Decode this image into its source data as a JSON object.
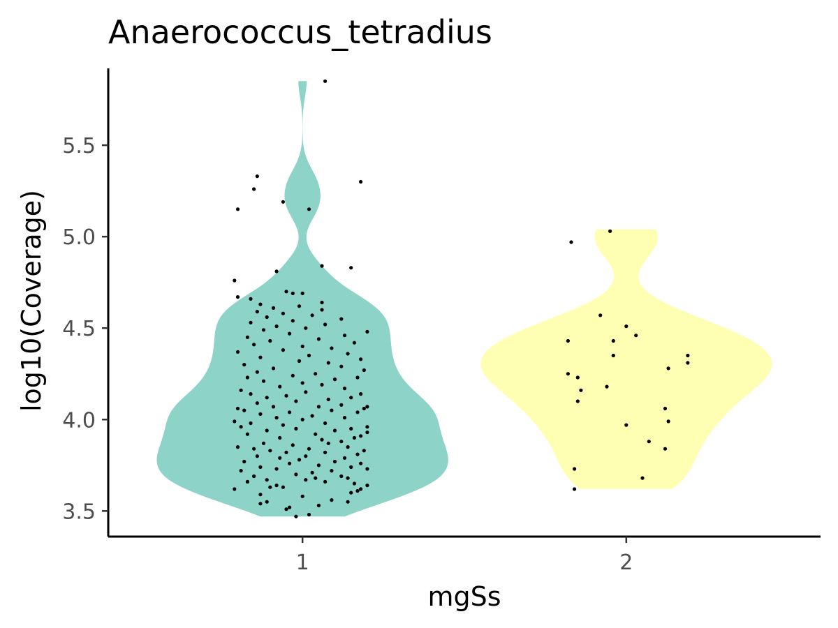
{
  "chart_data": {
    "type": "violin",
    "title": "Anaerococcus_tetradius",
    "xlabel": "mgSs",
    "ylabel": "log10(Coverage)",
    "categories": [
      "1",
      "2"
    ],
    "ylim": [
      3.36,
      5.92
    ],
    "yticks": [
      "3.5",
      "4.0",
      "4.5",
      "5.0",
      "5.5"
    ],
    "grid": false,
    "legend": "none",
    "colors": {
      "1": "#8dd3c7",
      "2": "#ffffb3",
      "points": "#000000",
      "axis": "#000000"
    },
    "series": [
      {
        "category": "1",
        "range": [
          3.47,
          5.85
        ],
        "points": [
          {
            "x": 0.98,
            "y": 3.47
          },
          {
            "x": 1.02,
            "y": 3.48
          },
          {
            "x": 0.95,
            "y": 3.51
          },
          {
            "x": 0.96,
            "y": 3.52
          },
          {
            "x": 1.05,
            "y": 3.53
          },
          {
            "x": 0.87,
            "y": 3.54
          },
          {
            "x": 0.89,
            "y": 3.55
          },
          {
            "x": 1.14,
            "y": 3.55
          },
          {
            "x": 1.09,
            "y": 3.56
          },
          {
            "x": 1.0,
            "y": 3.58
          },
          {
            "x": 0.87,
            "y": 3.59
          },
          {
            "x": 1.15,
            "y": 3.6
          },
          {
            "x": 1.17,
            "y": 3.61
          },
          {
            "x": 1.18,
            "y": 3.62
          },
          {
            "x": 0.79,
            "y": 3.62
          },
          {
            "x": 0.9,
            "y": 3.63
          },
          {
            "x": 0.94,
            "y": 3.63
          },
          {
            "x": 1.2,
            "y": 3.64
          },
          {
            "x": 0.92,
            "y": 3.64
          },
          {
            "x": 1.16,
            "y": 3.65
          },
          {
            "x": 0.83,
            "y": 3.66
          },
          {
            "x": 1.07,
            "y": 3.66
          },
          {
            "x": 1.01,
            "y": 3.67
          },
          {
            "x": 0.89,
            "y": 3.67
          },
          {
            "x": 1.04,
            "y": 3.68
          },
          {
            "x": 1.14,
            "y": 3.68
          },
          {
            "x": 1.12,
            "y": 3.69
          },
          {
            "x": 0.85,
            "y": 3.69
          },
          {
            "x": 0.98,
            "y": 3.7
          },
          {
            "x": 1.03,
            "y": 3.71
          },
          {
            "x": 1.09,
            "y": 3.72
          },
          {
            "x": 0.81,
            "y": 3.72
          },
          {
            "x": 1.2,
            "y": 3.73
          },
          {
            "x": 0.92,
            "y": 3.73
          },
          {
            "x": 1.15,
            "y": 3.74
          },
          {
            "x": 0.87,
            "y": 3.74
          },
          {
            "x": 1.05,
            "y": 3.75
          },
          {
            "x": 0.96,
            "y": 3.76
          },
          {
            "x": 1.18,
            "y": 3.76
          },
          {
            "x": 0.82,
            "y": 3.77
          },
          {
            "x": 1.1,
            "y": 3.77
          },
          {
            "x": 0.99,
            "y": 3.78
          },
          {
            "x": 0.93,
            "y": 3.79
          },
          {
            "x": 1.13,
            "y": 3.79
          },
          {
            "x": 1.01,
            "y": 3.8
          },
          {
            "x": 0.86,
            "y": 3.8
          },
          {
            "x": 1.17,
            "y": 3.81
          },
          {
            "x": 1.07,
            "y": 3.82
          },
          {
            "x": 0.95,
            "y": 3.82
          },
          {
            "x": 0.9,
            "y": 3.83
          },
          {
            "x": 1.19,
            "y": 3.83
          },
          {
            "x": 0.85,
            "y": 3.84
          },
          {
            "x": 1.02,
            "y": 3.84
          },
          {
            "x": 0.8,
            "y": 3.85
          },
          {
            "x": 1.14,
            "y": 3.85
          },
          {
            "x": 0.97,
            "y": 3.86
          },
          {
            "x": 1.08,
            "y": 3.87
          },
          {
            "x": 0.88,
            "y": 3.87
          },
          {
            "x": 1.12,
            "y": 3.88
          },
          {
            "x": 1.06,
            "y": 3.89
          },
          {
            "x": 0.93,
            "y": 3.9
          },
          {
            "x": 1.16,
            "y": 3.9
          },
          {
            "x": 1.18,
            "y": 3.91
          },
          {
            "x": 0.83,
            "y": 3.92
          },
          {
            "x": 1.04,
            "y": 3.92
          },
          {
            "x": 1.2,
            "y": 3.93
          },
          {
            "x": 0.89,
            "y": 3.94
          },
          {
            "x": 1.1,
            "y": 3.94
          },
          {
            "x": 0.98,
            "y": 3.95
          },
          {
            "x": 1.15,
            "y": 3.95
          },
          {
            "x": 0.81,
            "y": 3.96
          },
          {
            "x": 1.2,
            "y": 3.96
          },
          {
            "x": 0.94,
            "y": 3.97
          },
          {
            "x": 0.84,
            "y": 3.98
          },
          {
            "x": 1.07,
            "y": 3.98
          },
          {
            "x": 0.79,
            "y": 3.99
          },
          {
            "x": 1.0,
            "y": 4.0
          },
          {
            "x": 1.13,
            "y": 4.01
          },
          {
            "x": 0.92,
            "y": 4.01
          },
          {
            "x": 1.03,
            "y": 4.02
          },
          {
            "x": 0.87,
            "y": 4.03
          },
          {
            "x": 1.17,
            "y": 4.04
          },
          {
            "x": 0.96,
            "y": 4.04
          },
          {
            "x": 1.09,
            "y": 4.05
          },
          {
            "x": 0.82,
            "y": 4.05
          },
          {
            "x": 1.19,
            "y": 4.06
          },
          {
            "x": 0.8,
            "y": 4.06
          },
          {
            "x": 1.05,
            "y": 4.07
          },
          {
            "x": 0.91,
            "y": 4.07
          },
          {
            "x": 1.2,
            "y": 4.07
          },
          {
            "x": 1.12,
            "y": 4.08
          },
          {
            "x": 0.86,
            "y": 4.09
          },
          {
            "x": 0.98,
            "y": 4.1
          },
          {
            "x": 1.08,
            "y": 4.11
          },
          {
            "x": 0.89,
            "y": 4.12
          },
          {
            "x": 1.15,
            "y": 4.12
          },
          {
            "x": 0.95,
            "y": 4.13
          },
          {
            "x": 0.84,
            "y": 4.14
          },
          {
            "x": 1.18,
            "y": 4.14
          },
          {
            "x": 1.01,
            "y": 4.15
          },
          {
            "x": 0.81,
            "y": 4.16
          },
          {
            "x": 1.13,
            "y": 4.17
          },
          {
            "x": 0.93,
            "y": 4.18
          },
          {
            "x": 1.06,
            "y": 4.19
          },
          {
            "x": 1.0,
            "y": 4.2
          },
          {
            "x": 0.88,
            "y": 4.21
          },
          {
            "x": 1.1,
            "y": 4.22
          },
          {
            "x": 0.83,
            "y": 4.23
          },
          {
            "x": 1.17,
            "y": 4.23
          },
          {
            "x": 0.97,
            "y": 4.24
          },
          {
            "x": 1.04,
            "y": 4.25
          },
          {
            "x": 0.86,
            "y": 4.26
          },
          {
            "x": 1.19,
            "y": 4.27
          },
          {
            "x": 0.91,
            "y": 4.28
          },
          {
            "x": 1.12,
            "y": 4.29
          },
          {
            "x": 0.82,
            "y": 4.3
          },
          {
            "x": 1.08,
            "y": 4.31
          },
          {
            "x": 0.99,
            "y": 4.32
          },
          {
            "x": 1.18,
            "y": 4.33
          },
          {
            "x": 0.87,
            "y": 4.34
          },
          {
            "x": 1.02,
            "y": 4.35
          },
          {
            "x": 1.14,
            "y": 4.36
          },
          {
            "x": 0.8,
            "y": 4.37
          },
          {
            "x": 0.94,
            "y": 4.38
          },
          {
            "x": 1.09,
            "y": 4.39
          },
          {
            "x": 1.0,
            "y": 4.4
          },
          {
            "x": 0.85,
            "y": 4.41
          },
          {
            "x": 1.16,
            "y": 4.42
          },
          {
            "x": 0.9,
            "y": 4.43
          },
          {
            "x": 1.05,
            "y": 4.44
          },
          {
            "x": 0.83,
            "y": 4.45
          },
          {
            "x": 1.13,
            "y": 4.46
          },
          {
            "x": 0.96,
            "y": 4.47
          },
          {
            "x": 1.2,
            "y": 4.48
          },
          {
            "x": 0.88,
            "y": 4.49
          },
          {
            "x": 1.01,
            "y": 4.5
          },
          {
            "x": 0.92,
            "y": 4.51
          },
          {
            "x": 1.07,
            "y": 4.52
          },
          {
            "x": 0.84,
            "y": 4.53
          },
          {
            "x": 0.97,
            "y": 4.54
          },
          {
            "x": 1.12,
            "y": 4.55
          },
          {
            "x": 0.89,
            "y": 4.56
          },
          {
            "x": 1.03,
            "y": 4.57
          },
          {
            "x": 0.94,
            "y": 4.58
          },
          {
            "x": 0.86,
            "y": 4.59
          },
          {
            "x": 1.06,
            "y": 4.6
          },
          {
            "x": 0.91,
            "y": 4.61
          },
          {
            "x": 0.99,
            "y": 4.62
          },
          {
            "x": 0.87,
            "y": 4.63
          },
          {
            "x": 1.06,
            "y": 4.64
          },
          {
            "x": 0.8,
            "y": 4.67
          },
          {
            "x": 0.84,
            "y": 4.66
          },
          {
            "x": 0.97,
            "y": 4.69
          },
          {
            "x": 0.95,
            "y": 4.7
          },
          {
            "x": 1.0,
            "y": 4.69
          },
          {
            "x": 0.79,
            "y": 4.76
          },
          {
            "x": 0.92,
            "y": 4.81
          },
          {
            "x": 1.06,
            "y": 4.84
          },
          {
            "x": 1.15,
            "y": 4.83
          },
          {
            "x": 1.02,
            "y": 5.15
          },
          {
            "x": 0.8,
            "y": 5.15
          },
          {
            "x": 0.94,
            "y": 5.19
          },
          {
            "x": 0.85,
            "y": 5.26
          },
          {
            "x": 0.86,
            "y": 5.33
          },
          {
            "x": 1.18,
            "y": 5.3
          },
          {
            "x": 1.07,
            "y": 5.85
          }
        ]
      },
      {
        "category": "2",
        "range": [
          3.62,
          5.04
        ],
        "points": [
          {
            "x": 1.84,
            "y": 3.62
          },
          {
            "x": 1.84,
            "y": 3.73
          },
          {
            "x": 2.05,
            "y": 3.68
          },
          {
            "x": 2.12,
            "y": 3.84
          },
          {
            "x": 2.07,
            "y": 3.88
          },
          {
            "x": 2.0,
            "y": 3.97
          },
          {
            "x": 2.13,
            "y": 3.99
          },
          {
            "x": 2.12,
            "y": 4.06
          },
          {
            "x": 1.85,
            "y": 4.1
          },
          {
            "x": 1.86,
            "y": 4.16
          },
          {
            "x": 1.94,
            "y": 4.18
          },
          {
            "x": 1.85,
            "y": 4.23
          },
          {
            "x": 1.82,
            "y": 4.25
          },
          {
            "x": 2.13,
            "y": 4.28
          },
          {
            "x": 2.19,
            "y": 4.31
          },
          {
            "x": 2.19,
            "y": 4.35
          },
          {
            "x": 1.96,
            "y": 4.35
          },
          {
            "x": 1.82,
            "y": 4.43
          },
          {
            "x": 1.96,
            "y": 4.43
          },
          {
            "x": 2.03,
            "y": 4.46
          },
          {
            "x": 2.0,
            "y": 4.51
          },
          {
            "x": 1.92,
            "y": 4.57
          },
          {
            "x": 1.83,
            "y": 4.97
          },
          {
            "x": 1.95,
            "y": 5.03
          }
        ]
      }
    ]
  }
}
